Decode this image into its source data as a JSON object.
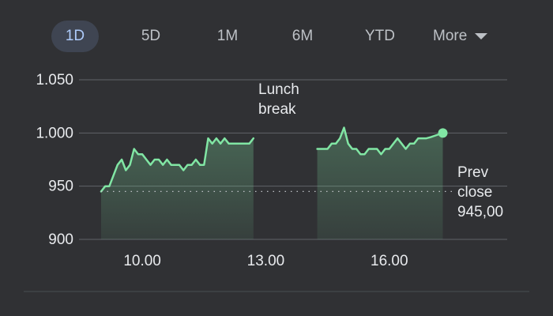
{
  "ranges": {
    "items": [
      {
        "label": "1D",
        "active": true
      },
      {
        "label": "5D",
        "active": false
      },
      {
        "label": "1M",
        "active": false
      },
      {
        "label": "6M",
        "active": false
      },
      {
        "label": "YTD",
        "active": false
      }
    ],
    "more_label": "More"
  },
  "annotations": {
    "lunch_line1": "Lunch",
    "lunch_line2": "break",
    "prev_line1": "Prev",
    "prev_line2": "close",
    "prev_value": "945,00"
  },
  "colors": {
    "line": "#81e6a4",
    "grid": "#5f6368",
    "text": "#e8eaed"
  },
  "chart_data": {
    "type": "line",
    "x_unit": "hour",
    "xlim": [
      9,
      17.75
    ],
    "ylim": [
      895,
      1050
    ],
    "y_ticks": [
      {
        "value": 1050,
        "label": "1.050"
      },
      {
        "value": 1000,
        "label": "1.000"
      },
      {
        "value": 950,
        "label": "950"
      },
      {
        "value": 900,
        "label": "900"
      }
    ],
    "x_ticks": [
      {
        "value": 10,
        "label": "10.00"
      },
      {
        "value": 13,
        "label": "13.00"
      },
      {
        "value": 16,
        "label": "16.00"
      }
    ],
    "baseline": 945,
    "segments": [
      [
        [
          9.0,
          945
        ],
        [
          9.1,
          950
        ],
        [
          9.2,
          950
        ],
        [
          9.3,
          960
        ],
        [
          9.4,
          970
        ],
        [
          9.5,
          975
        ],
        [
          9.6,
          965
        ],
        [
          9.7,
          970
        ],
        [
          9.8,
          985
        ],
        [
          9.9,
          980
        ],
        [
          10.0,
          980
        ],
        [
          10.1,
          975
        ],
        [
          10.2,
          970
        ],
        [
          10.3,
          975
        ],
        [
          10.4,
          975
        ],
        [
          10.5,
          970
        ],
        [
          10.6,
          975
        ],
        [
          10.7,
          970
        ],
        [
          10.8,
          970
        ],
        [
          10.9,
          970
        ],
        [
          11.0,
          965
        ],
        [
          11.1,
          970
        ],
        [
          11.2,
          970
        ],
        [
          11.3,
          975
        ],
        [
          11.4,
          970
        ],
        [
          11.5,
          970
        ],
        [
          11.6,
          995
        ],
        [
          11.7,
          990
        ],
        [
          11.8,
          995
        ],
        [
          11.9,
          990
        ],
        [
          12.0,
          995
        ],
        [
          12.1,
          990
        ],
        [
          12.2,
          990
        ],
        [
          12.3,
          990
        ],
        [
          12.4,
          990
        ],
        [
          12.5,
          990
        ],
        [
          12.6,
          990
        ],
        [
          12.7,
          995
        ]
      ],
      [
        [
          14.25,
          985
        ],
        [
          14.4,
          985
        ],
        [
          14.5,
          985
        ],
        [
          14.6,
          990
        ],
        [
          14.7,
          990
        ],
        [
          14.8,
          995
        ],
        [
          14.9,
          1005
        ],
        [
          15.0,
          990
        ],
        [
          15.1,
          985
        ],
        [
          15.2,
          985
        ],
        [
          15.3,
          980
        ],
        [
          15.4,
          980
        ],
        [
          15.5,
          985
        ],
        [
          15.6,
          985
        ],
        [
          15.7,
          985
        ],
        [
          15.8,
          980
        ],
        [
          15.9,
          985
        ],
        [
          16.0,
          985
        ],
        [
          16.1,
          990
        ],
        [
          16.2,
          995
        ],
        [
          16.3,
          990
        ],
        [
          16.4,
          985
        ],
        [
          16.5,
          990
        ],
        [
          16.6,
          990
        ],
        [
          16.7,
          995
        ],
        [
          16.9,
          995
        ],
        [
          17.0,
          996
        ],
        [
          17.15,
          998
        ],
        [
          17.3,
          1000
        ]
      ]
    ]
  }
}
